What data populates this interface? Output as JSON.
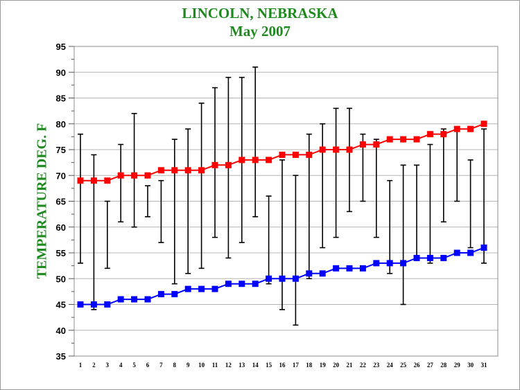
{
  "chart_data": {
    "type": "line",
    "title": "LINCOLN, NEBRASKA",
    "subtitle": "May  2007",
    "xlabel": "",
    "ylabel": "TEMPERATURE DEG. F",
    "xlim": [
      1,
      31
    ],
    "ylim": [
      35,
      95
    ],
    "yticks": [
      35,
      40,
      45,
      50,
      55,
      60,
      65,
      70,
      75,
      80,
      85,
      90,
      95
    ],
    "x": [
      1,
      2,
      3,
      4,
      5,
      6,
      7,
      8,
      9,
      10,
      11,
      12,
      13,
      14,
      15,
      16,
      17,
      18,
      19,
      20,
      21,
      22,
      23,
      24,
      25,
      26,
      27,
      28,
      29,
      30,
      31
    ],
    "grid": true,
    "legend": "none",
    "series": [
      {
        "color": "#ff0000",
        "marker": "square",
        "values": [
          69,
          69,
          69,
          70,
          70,
          70,
          71,
          71,
          71,
          71,
          72,
          72,
          73,
          73,
          73,
          74,
          74,
          74,
          75,
          75,
          75,
          76,
          76,
          77,
          77,
          77,
          78,
          78,
          79,
          79,
          80
        ]
      },
      {
        "color": "#0000ff",
        "marker": "square",
        "values": [
          45,
          45,
          45,
          46,
          46,
          46,
          47,
          47,
          48,
          48,
          48,
          49,
          49,
          49,
          50,
          50,
          50,
          51,
          51,
          52,
          52,
          52,
          53,
          53,
          53,
          54,
          54,
          54,
          55,
          55,
          56
        ]
      }
    ],
    "ranges": {
      "color": "#000000",
      "low": [
        53,
        44,
        52,
        61,
        60,
        62,
        57,
        49,
        51,
        52,
        58,
        54,
        57,
        62,
        49,
        44,
        41,
        50,
        56,
        58,
        63,
        65,
        58,
        51,
        45,
        54,
        53,
        61,
        65,
        56,
        53
      ],
      "high": [
        78,
        74,
        65,
        76,
        82,
        68,
        69,
        77,
        79,
        84,
        87,
        89,
        89,
        91,
        66,
        73,
        70,
        78,
        80,
        83,
        83,
        78,
        77,
        69,
        72,
        72,
        76,
        79,
        79,
        73,
        79
      ]
    }
  }
}
